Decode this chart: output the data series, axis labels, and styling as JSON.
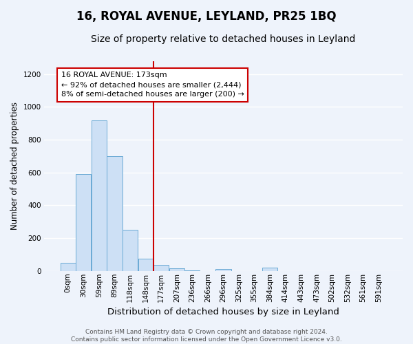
{
  "title": "16, ROYAL AVENUE, LEYLAND, PR25 1BQ",
  "subtitle": "Size of property relative to detached houses in Leyland",
  "xlabel": "Distribution of detached houses by size in Leyland",
  "ylabel": "Number of detached properties",
  "categories": [
    "0sqm",
    "30sqm",
    "59sqm",
    "89sqm",
    "118sqm",
    "148sqm",
    "177sqm",
    "207sqm",
    "236sqm",
    "266sqm",
    "296sqm",
    "325sqm",
    "355sqm",
    "384sqm",
    "414sqm",
    "443sqm",
    "473sqm",
    "502sqm",
    "532sqm",
    "561sqm",
    "591sqm"
  ],
  "bar_heights": [
    50,
    590,
    920,
    700,
    250,
    75,
    35,
    15,
    5,
    0,
    10,
    0,
    0,
    20,
    0,
    0,
    0,
    0,
    0,
    0,
    0
  ],
  "bar_color": "#cde0f5",
  "bar_edgecolor": "#6aaad4",
  "line_color": "#cc0000",
  "annotation_line1": "16 ROYAL AVENUE: 173sqm",
  "annotation_line2": "← 92% of detached houses are smaller (2,444)",
  "annotation_line3": "8% of semi-detached houses are larger (200) →",
  "annotation_box_edgecolor": "#cc0000",
  "bg_color": "#eef3fb",
  "grid_color": "#ffffff",
  "footer_text": "Contains HM Land Registry data © Crown copyright and database right 2024.\nContains public sector information licensed under the Open Government Licence v3.0.",
  "ylim": [
    0,
    1280
  ],
  "yticks": [
    0,
    200,
    400,
    600,
    800,
    1000,
    1200
  ],
  "title_fontsize": 12,
  "subtitle_fontsize": 10,
  "xlabel_fontsize": 9.5,
  "ylabel_fontsize": 8.5,
  "tick_fontsize": 7.5,
  "footer_fontsize": 6.5,
  "annotation_fontsize": 8,
  "line_x_index": 6
}
